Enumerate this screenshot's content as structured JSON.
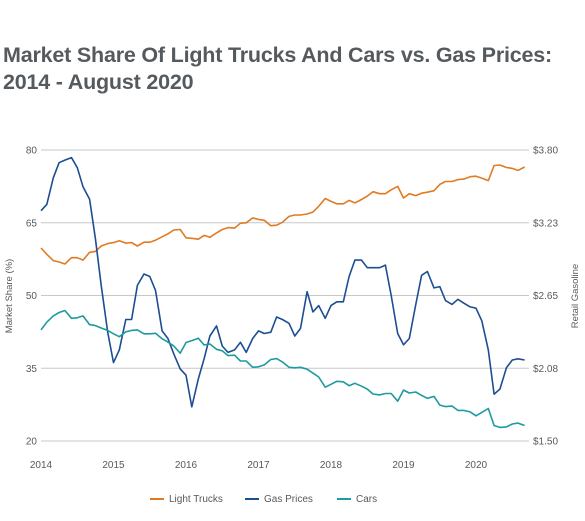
{
  "colors": {
    "light_trucks": "#e07b24",
    "gas_prices": "#1d4e92",
    "cars": "#1e9aa0",
    "grid": "#c8c8c8",
    "text": "#555a5e"
  },
  "chart_data": {
    "type": "line",
    "title": "Market Share Of Light Trucks And Cars vs. Gas Prices: 2014 - August 2020",
    "ylabel": "Market Share (%)",
    "y2label": "Retail Gasoline",
    "ylim": [
      20,
      80
    ],
    "y2lim": [
      1.5,
      3.8
    ],
    "xlim": [
      2014.0,
      2020.75
    ],
    "x_ticks": [
      "2014",
      "2015",
      "2016",
      "2017",
      "2018",
      "2019",
      "2020"
    ],
    "y_ticks": [
      "80",
      "65",
      "50",
      "35",
      "20"
    ],
    "y2_ticks": [
      "$3.80",
      "$3.23",
      "$2.65",
      "$2.08",
      "$1.50"
    ],
    "grid": true,
    "legend_position": "bottom",
    "series": [
      {
        "name": "Light Trucks",
        "axis": "left",
        "x": [
          2014.0,
          2014.08,
          2014.17,
          2014.25,
          2014.33,
          2014.42,
          2014.5,
          2014.58,
          2014.67,
          2014.75,
          2014.83,
          2014.92,
          2015.0,
          2015.08,
          2015.17,
          2015.25,
          2015.33,
          2015.42,
          2015.5,
          2015.58,
          2015.67,
          2015.75,
          2015.83,
          2015.92,
          2016.0,
          2016.08,
          2016.17,
          2016.25,
          2016.33,
          2016.42,
          2016.5,
          2016.58,
          2016.67,
          2016.75,
          2016.83,
          2016.92,
          2017.0,
          2017.08,
          2017.17,
          2017.25,
          2017.33,
          2017.42,
          2017.5,
          2017.58,
          2017.67,
          2017.75,
          2017.83,
          2017.92,
          2018.0,
          2018.08,
          2018.17,
          2018.25,
          2018.33,
          2018.42,
          2018.5,
          2018.58,
          2018.67,
          2018.75,
          2018.83,
          2018.92,
          2019.0,
          2019.08,
          2019.17,
          2019.25,
          2019.33,
          2019.42,
          2019.5,
          2019.58,
          2019.67,
          2019.75,
          2019.83,
          2019.92,
          2020.0,
          2020.08,
          2020.17,
          2020.25,
          2020.33,
          2020.42,
          2020.5,
          2020.58,
          2020.67
        ],
        "values": [
          59.8,
          58.5,
          57.2,
          56.9,
          56.5,
          57.8,
          57.8,
          57.3,
          58.9,
          59.1,
          60.2,
          60.7,
          60.9,
          61.3,
          60.8,
          60.9,
          60.2,
          61.0,
          61.0,
          61.4,
          62.1,
          62.7,
          63.5,
          63.6,
          61.9,
          61.8,
          61.6,
          62.4,
          62.0,
          62.9,
          63.6,
          64.0,
          63.9,
          64.9,
          65.0,
          66.0,
          65.7,
          65.5,
          64.4,
          64.5,
          65.1,
          66.3,
          66.6,
          66.6,
          66.8,
          67.2,
          68.4,
          70.0,
          69.4,
          68.9,
          68.9,
          69.6,
          69.1,
          69.8,
          70.5,
          71.4,
          71.0,
          71.0,
          71.8,
          72.5,
          70.1,
          71.0,
          70.6,
          71.1,
          71.3,
          71.6,
          72.9,
          73.5,
          73.5,
          73.9,
          74.0,
          74.5,
          74.6,
          74.2,
          73.7,
          76.8,
          76.9,
          76.4,
          76.2,
          75.8,
          76.5
        ]
      },
      {
        "name": "Gas Prices",
        "axis": "right",
        "x": [
          2014.0,
          2014.08,
          2014.17,
          2014.25,
          2014.33,
          2014.42,
          2014.5,
          2014.58,
          2014.67,
          2014.75,
          2014.83,
          2014.92,
          2015.0,
          2015.08,
          2015.17,
          2015.25,
          2015.33,
          2015.42,
          2015.5,
          2015.58,
          2015.67,
          2015.75,
          2015.83,
          2015.92,
          2016.0,
          2016.08,
          2016.17,
          2016.25,
          2016.33,
          2016.42,
          2016.5,
          2016.58,
          2016.67,
          2016.75,
          2016.83,
          2016.92,
          2017.0,
          2017.08,
          2017.17,
          2017.25,
          2017.33,
          2017.42,
          2017.5,
          2017.58,
          2017.67,
          2017.75,
          2017.83,
          2017.92,
          2018.0,
          2018.08,
          2018.17,
          2018.25,
          2018.33,
          2018.42,
          2018.5,
          2018.58,
          2018.67,
          2018.75,
          2018.83,
          2018.92,
          2019.0,
          2019.08,
          2019.17,
          2019.25,
          2019.33,
          2019.42,
          2019.5,
          2019.58,
          2019.67,
          2019.75,
          2019.83,
          2019.92,
          2020.0,
          2020.08,
          2020.17,
          2020.25,
          2020.33,
          2020.42,
          2020.5,
          2020.58,
          2020.67
        ],
        "values": [
          3.32,
          3.37,
          3.58,
          3.7,
          3.72,
          3.74,
          3.66,
          3.51,
          3.41,
          3.1,
          2.73,
          2.36,
          2.12,
          2.22,
          2.46,
          2.46,
          2.73,
          2.82,
          2.8,
          2.69,
          2.37,
          2.31,
          2.19,
          2.07,
          2.02,
          1.77,
          1.99,
          2.15,
          2.33,
          2.41,
          2.25,
          2.2,
          2.22,
          2.28,
          2.2,
          2.31,
          2.37,
          2.35,
          2.36,
          2.48,
          2.46,
          2.43,
          2.33,
          2.39,
          2.68,
          2.52,
          2.57,
          2.47,
          2.57,
          2.6,
          2.6,
          2.8,
          2.93,
          2.93,
          2.87,
          2.87,
          2.87,
          2.89,
          2.65,
          2.35,
          2.26,
          2.31,
          2.58,
          2.81,
          2.84,
          2.71,
          2.72,
          2.61,
          2.58,
          2.62,
          2.59,
          2.56,
          2.55,
          2.45,
          2.22,
          1.87,
          1.91,
          2.08,
          2.14,
          2.15,
          2.14
        ]
      },
      {
        "name": "Cars",
        "axis": "left",
        "x": [
          2014.0,
          2014.08,
          2014.17,
          2014.25,
          2014.33,
          2014.42,
          2014.5,
          2014.58,
          2014.67,
          2014.75,
          2014.83,
          2014.92,
          2015.0,
          2015.08,
          2015.17,
          2015.25,
          2015.33,
          2015.42,
          2015.5,
          2015.58,
          2015.67,
          2015.75,
          2015.83,
          2015.92,
          2016.0,
          2016.08,
          2016.17,
          2016.25,
          2016.33,
          2016.42,
          2016.5,
          2016.58,
          2016.67,
          2016.75,
          2016.83,
          2016.92,
          2017.0,
          2017.08,
          2017.17,
          2017.25,
          2017.33,
          2017.42,
          2017.5,
          2017.58,
          2017.67,
          2017.75,
          2017.83,
          2017.92,
          2018.0,
          2018.08,
          2018.17,
          2018.25,
          2018.33,
          2018.42,
          2018.5,
          2018.58,
          2018.67,
          2018.75,
          2018.83,
          2018.92,
          2019.0,
          2019.08,
          2019.17,
          2019.25,
          2019.33,
          2019.42,
          2019.5,
          2019.58,
          2019.67,
          2019.75,
          2019.83,
          2019.92,
          2020.0,
          2020.08,
          2020.17,
          2020.25,
          2020.33,
          2020.42,
          2020.5,
          2020.58,
          2020.67
        ],
        "values": [
          42.9,
          44.5,
          45.8,
          46.5,
          46.9,
          45.3,
          45.4,
          45.8,
          44.0,
          43.8,
          43.3,
          42.8,
          42.1,
          41.5,
          42.5,
          42.8,
          42.9,
          42.1,
          42.1,
          42.2,
          41.1,
          40.4,
          39.6,
          38.1,
          40.3,
          40.7,
          41.2,
          39.8,
          40.0,
          38.9,
          38.6,
          37.6,
          37.7,
          36.5,
          36.5,
          35.2,
          35.3,
          35.7,
          36.8,
          37.0,
          36.3,
          35.2,
          35.1,
          35.2,
          34.8,
          34.0,
          33.2,
          31.1,
          31.7,
          32.3,
          32.2,
          31.4,
          31.9,
          31.3,
          30.7,
          29.7,
          29.5,
          29.8,
          29.8,
          28.2,
          30.5,
          29.9,
          30.1,
          29.4,
          28.8,
          29.2,
          27.4,
          27.1,
          27.2,
          26.3,
          26.3,
          26.0,
          25.2,
          25.9,
          26.7,
          23.2,
          22.8,
          22.9,
          23.5,
          23.7,
          23.2
        ]
      }
    ]
  }
}
